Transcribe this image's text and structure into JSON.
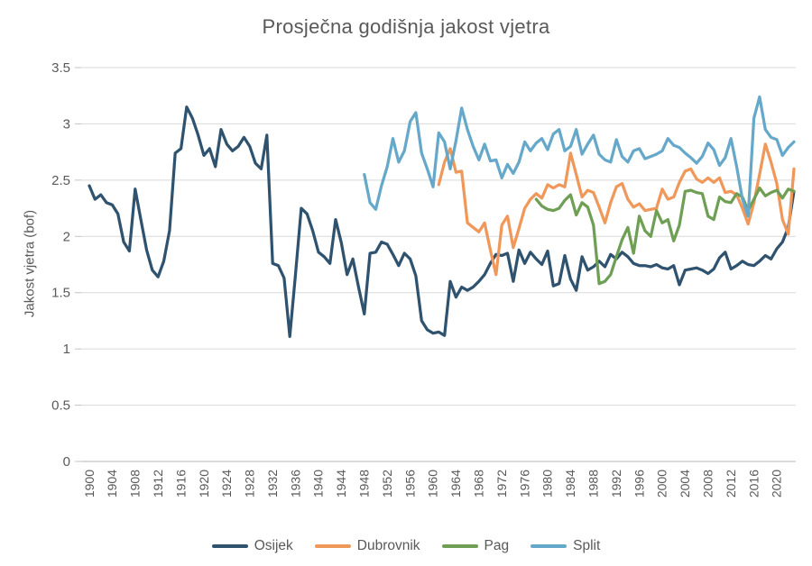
{
  "chart_data": {
    "type": "line",
    "title": "Prosječna godišnja jakost vjetra",
    "xlabel": "",
    "ylabel": "Jakost vjetra (bof)",
    "ylim": [
      0,
      3.5
    ],
    "ytick_step": 0.5,
    "ytick_labels": [
      "0",
      "0.5",
      "1",
      "1.5",
      "2",
      "2.5",
      "3",
      "3.5"
    ],
    "xlim": [
      1900,
      2023
    ],
    "xtick_start": 1900,
    "xtick_end": 2020,
    "xtick_step": 4,
    "grid": true,
    "legend_position": "bottom",
    "background_color": "#ffffff",
    "text_color": "#595959",
    "grid_color": "#d9d9d9",
    "axis_line_color": "#c3c3c3",
    "series": [
      {
        "name": "Osijek",
        "color": "#2f536f",
        "start_year": 1900,
        "values": [
          2.45,
          2.33,
          2.37,
          2.3,
          2.28,
          2.2,
          1.95,
          1.87,
          2.42,
          2.15,
          1.88,
          1.7,
          1.64,
          1.78,
          2.05,
          2.74,
          2.78,
          3.15,
          3.05,
          2.9,
          2.72,
          2.78,
          2.62,
          2.95,
          2.82,
          2.76,
          2.8,
          2.88,
          2.8,
          2.65,
          2.6,
          2.9,
          1.76,
          1.74,
          1.63,
          1.11,
          1.67,
          2.25,
          2.2,
          2.05,
          1.86,
          1.82,
          1.76,
          2.15,
          1.94,
          1.66,
          1.8,
          1.55,
          1.31,
          1.85,
          1.86,
          1.95,
          1.93,
          1.84,
          1.74,
          1.85,
          1.8,
          1.65,
          1.25,
          1.17,
          1.14,
          1.15,
          1.12,
          1.6,
          1.46,
          1.55,
          1.52,
          1.55,
          1.6,
          1.66,
          1.76,
          1.84,
          1.83,
          1.85,
          1.6,
          1.88,
          1.76,
          1.86,
          1.8,
          1.75,
          1.87,
          1.56,
          1.58,
          1.83,
          1.62,
          1.52,
          1.82,
          1.7,
          1.73,
          1.78,
          1.73,
          1.84,
          1.8,
          1.86,
          1.82,
          1.76,
          1.74,
          1.74,
          1.73,
          1.75,
          1.72,
          1.71,
          1.74,
          1.57,
          1.7,
          1.71,
          1.72,
          1.7,
          1.67,
          1.71,
          1.81,
          1.86,
          1.71,
          1.74,
          1.78,
          1.75,
          1.74,
          1.78,
          1.83,
          1.8,
          1.89,
          1.95,
          2.08,
          2.4
        ]
      },
      {
        "name": "Dubrovnik",
        "color": "#f0975a",
        "start_year": 1961,
        "values": [
          2.46,
          2.66,
          2.78,
          2.57,
          2.58,
          2.12,
          2.08,
          2.04,
          2.12,
          1.88,
          1.66,
          2.1,
          2.18,
          1.9,
          2.07,
          2.25,
          2.33,
          2.38,
          2.34,
          2.46,
          2.43,
          2.46,
          2.44,
          2.74,
          2.55,
          2.35,
          2.41,
          2.39,
          2.26,
          2.12,
          2.3,
          2.44,
          2.47,
          2.33,
          2.26,
          2.29,
          2.23,
          2.24,
          2.25,
          2.42,
          2.33,
          2.35,
          2.48,
          2.58,
          2.6,
          2.51,
          2.48,
          2.52,
          2.48,
          2.52,
          2.39,
          2.4,
          2.37,
          2.25,
          2.11,
          2.3,
          2.55,
          2.82,
          2.66,
          2.47,
          2.15,
          2.02,
          2.6
        ]
      },
      {
        "name": "Pag",
        "color": "#6f9f54",
        "start_year": 1978,
        "values": [
          2.33,
          2.27,
          2.24,
          2.23,
          2.25,
          2.32,
          2.37,
          2.19,
          2.3,
          2.26,
          2.1,
          1.58,
          1.6,
          1.66,
          1.82,
          1.97,
          2.08,
          1.85,
          2.18,
          2.05,
          2.0,
          2.23,
          2.12,
          2.15,
          1.96,
          2.1,
          2.4,
          2.41,
          2.39,
          2.38,
          2.18,
          2.15,
          2.35,
          2.31,
          2.3,
          2.38,
          2.35,
          2.23,
          2.33,
          2.43,
          2.36,
          2.39,
          2.41,
          2.34,
          2.42,
          2.4
        ]
      },
      {
        "name": "Split",
        "color": "#66a8c9",
        "start_year": 1948,
        "values": [
          2.55,
          2.3,
          2.24,
          2.45,
          2.62,
          2.87,
          2.66,
          2.76,
          3.02,
          3.1,
          2.74,
          2.6,
          2.44,
          2.92,
          2.84,
          2.6,
          2.85,
          3.14,
          2.95,
          2.8,
          2.68,
          2.82,
          2.67,
          2.68,
          2.52,
          2.64,
          2.56,
          2.66,
          2.84,
          2.76,
          2.83,
          2.87,
          2.77,
          2.91,
          2.95,
          2.76,
          2.8,
          2.95,
          2.73,
          2.82,
          2.9,
          2.73,
          2.68,
          2.66,
          2.86,
          2.71,
          2.66,
          2.76,
          2.78,
          2.69,
          2.71,
          2.73,
          2.76,
          2.87,
          2.81,
          2.79,
          2.74,
          2.7,
          2.65,
          2.71,
          2.83,
          2.77,
          2.63,
          2.7,
          2.87,
          2.62,
          2.33,
          2.18,
          3.05,
          3.24,
          2.95,
          2.88,
          2.86,
          2.72,
          2.79,
          2.84
        ]
      }
    ]
  }
}
